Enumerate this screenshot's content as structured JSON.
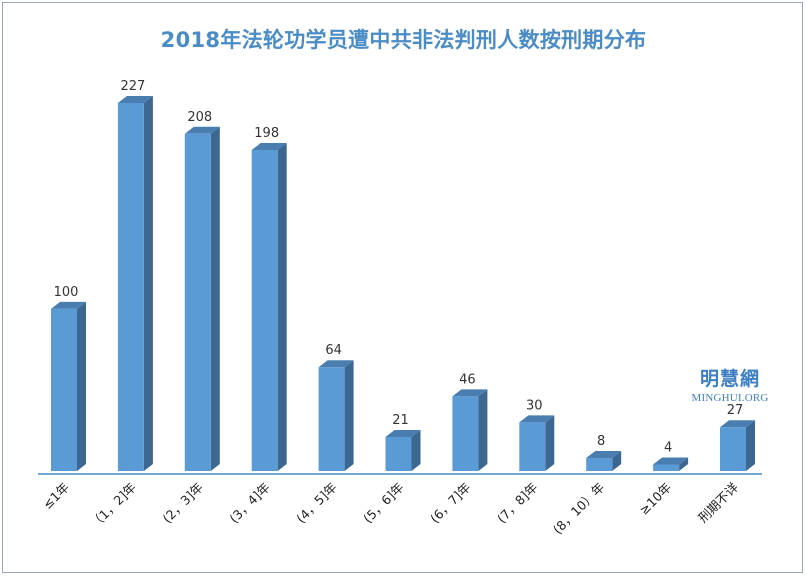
{
  "chart_data": {
    "type": "bar",
    "title": "2018年法轮功学员遭中共非法判刑人数按刑期分布",
    "categories": [
      "≤1年",
      "（1，2]年",
      "(2，3]年",
      "(3，4]年",
      "(4，5]年",
      "(5，6]年",
      "(6，7]年",
      "(7，8]年",
      "(8，10）年",
      "≥10年",
      "刑期不详"
    ],
    "values": [
      100,
      227,
      208,
      198,
      64,
      21,
      46,
      30,
      8,
      4,
      27
    ],
    "xlabel": "",
    "ylabel": "",
    "ylim": [
      0,
      227
    ],
    "grid": false,
    "legend": "none",
    "data_labels": true,
    "bar_color": "#5b9bd5",
    "bar_side_color": "#3c6791",
    "bar_top_color": "#4a7eb0",
    "title_color": "#4a8cc6"
  },
  "watermark": {
    "cn": "明慧網",
    "en": "MINGHUI.ORG"
  }
}
